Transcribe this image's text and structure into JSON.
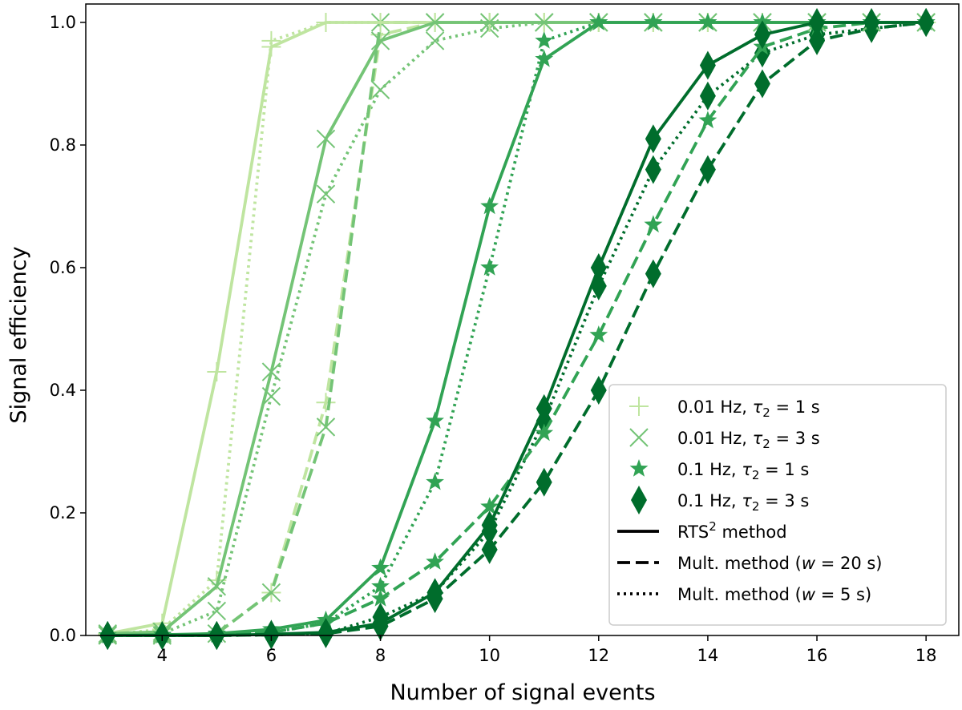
{
  "chart_data": {
    "type": "line",
    "xlabel": "Number of signal events",
    "ylabel": "Signal efficiency",
    "xlim": [
      2.6,
      18.6
    ],
    "ylim": [
      0.0,
      1.03
    ],
    "xticks": [
      4,
      6,
      8,
      10,
      12,
      14,
      16,
      18
    ],
    "xtick_labels": [
      "4",
      "6",
      "8",
      "10",
      "12",
      "14",
      "16",
      "18"
    ],
    "yticks": [
      0.0,
      0.2,
      0.4,
      0.6,
      0.8,
      1.0
    ],
    "ytick_labels": [
      "0.0",
      "0.2",
      "0.4",
      "0.6",
      "0.8",
      "1.0"
    ],
    "grid": false,
    "legend_position": "lower-right",
    "x": [
      3,
      4,
      5,
      6,
      7,
      8,
      9,
      10,
      11,
      12,
      13,
      14,
      15,
      16,
      17,
      18
    ],
    "legend": {
      "markers": [
        {
          "prefix": "0.01 Hz, ",
          "tau": "τ",
          "sub": "2",
          "suffix": " = 1 s",
          "marker": "plus",
          "color": "#bfe5a0"
        },
        {
          "prefix": "0.01 Hz, ",
          "tau": "τ",
          "sub": "2",
          "suffix": " = 3 s",
          "marker": "x",
          "color": "#74c476"
        },
        {
          "prefix": "0.1 Hz, ",
          "tau": "τ",
          "sub": "2",
          "suffix": " = 1 s",
          "marker": "star",
          "color": "#31a354"
        },
        {
          "prefix": "0.1 Hz, ",
          "tau": "τ",
          "sub": "2",
          "suffix": " = 3 s",
          "marker": "diamond",
          "color": "#006d2c"
        }
      ],
      "methods": [
        {
          "label": "RTS",
          "sup": "2",
          "after": " method",
          "style": "solid"
        },
        {
          "label": "Mult. method (",
          "italic": "w",
          "after": " = 20 s)",
          "style": "dashed"
        },
        {
          "label": "Mult. method (",
          "italic": "w",
          "after": " = 5 s)",
          "style": "dotted"
        }
      ]
    },
    "series": [
      {
        "group": "0.01 Hz, τ2 = 1 s",
        "method": "RTS2",
        "color": "#bfe5a0",
        "marker": "plus",
        "style": "solid",
        "values": [
          0.003,
          0.02,
          0.43,
          0.96,
          1.0,
          1.0,
          1.0,
          1.0,
          1.0,
          1.0,
          1.0,
          1.0,
          1.0,
          1.0,
          1.0,
          1.0
        ]
      },
      {
        "group": "0.01 Hz, τ2 = 1 s",
        "method": "Mult. w=20",
        "color": "#bfe5a0",
        "marker": "plus",
        "style": "dashed",
        "values": [
          0.0,
          0.0,
          0.003,
          0.07,
          0.38,
          0.98,
          1.0,
          1.0,
          1.0,
          1.0,
          1.0,
          1.0,
          1.0,
          1.0,
          1.0,
          1.0
        ]
      },
      {
        "group": "0.01 Hz, τ2 = 1 s",
        "method": "Mult. w=5",
        "color": "#bfe5a0",
        "marker": "plus",
        "style": "dotted",
        "values": [
          0.001,
          0.01,
          0.09,
          0.97,
          1.0,
          1.0,
          1.0,
          1.0,
          1.0,
          1.0,
          1.0,
          1.0,
          1.0,
          1.0,
          1.0,
          1.0
        ]
      },
      {
        "group": "0.01 Hz, τ2 = 3 s",
        "method": "RTS2",
        "color": "#74c476",
        "marker": "x",
        "style": "solid",
        "values": [
          0.003,
          0.006,
          0.08,
          0.43,
          0.81,
          0.97,
          1.0,
          1.0,
          1.0,
          1.0,
          1.0,
          1.0,
          1.0,
          1.0,
          1.0,
          1.0
        ]
      },
      {
        "group": "0.01 Hz, τ2 = 3 s",
        "method": "Mult. w=20",
        "color": "#74c476",
        "marker": "x",
        "style": "dashed",
        "values": [
          0.0,
          0.0,
          0.003,
          0.07,
          0.34,
          1.0,
          1.0,
          1.0,
          1.0,
          1.0,
          1.0,
          1.0,
          1.0,
          1.0,
          1.0,
          1.0
        ]
      },
      {
        "group": "0.01 Hz, τ2 = 3 s",
        "method": "Mult. w=5",
        "color": "#74c476",
        "marker": "x",
        "style": "dotted",
        "values": [
          0.001,
          0.003,
          0.04,
          0.39,
          0.72,
          0.89,
          0.97,
          0.99,
          1.0,
          1.0,
          1.0,
          1.0,
          1.0,
          1.0,
          1.0,
          1.0
        ]
      },
      {
        "group": "0.1 Hz, τ2 = 1 s",
        "method": "RTS2",
        "color": "#31a354",
        "marker": "star",
        "style": "solid",
        "values": [
          0.0,
          0.001,
          0.003,
          0.01,
          0.025,
          0.11,
          0.35,
          0.7,
          0.94,
          1.0,
          1.0,
          1.0,
          1.0,
          1.0,
          1.0,
          1.0
        ]
      },
      {
        "group": "0.1 Hz, τ2 = 1 s",
        "method": "Mult. w=20",
        "color": "#31a354",
        "marker": "star",
        "style": "dashed",
        "values": [
          0.0,
          0.0,
          0.001,
          0.005,
          0.02,
          0.06,
          0.12,
          0.21,
          0.33,
          0.49,
          0.67,
          0.84,
          0.96,
          0.99,
          1.0,
          1.0
        ]
      },
      {
        "group": "0.1 Hz, τ2 = 1 s",
        "method": "Mult. w=5",
        "color": "#31a354",
        "marker": "star",
        "style": "dotted",
        "values": [
          0.0,
          0.0,
          0.001,
          0.005,
          0.02,
          0.08,
          0.25,
          0.6,
          0.97,
          1.0,
          1.0,
          1.0,
          1.0,
          1.0,
          1.0,
          1.0
        ]
      },
      {
        "group": "0.1 Hz, τ2 = 3 s",
        "method": "RTS2",
        "color": "#006d2c",
        "marker": "diamond",
        "style": "solid",
        "values": [
          0.0,
          0.0,
          0.0,
          0.002,
          0.005,
          0.02,
          0.07,
          0.18,
          0.37,
          0.6,
          0.81,
          0.93,
          0.98,
          1.0,
          1.0,
          1.0
        ]
      },
      {
        "group": "0.1 Hz, τ2 = 3 s",
        "method": "Mult. w=20",
        "color": "#006d2c",
        "marker": "diamond",
        "style": "dashed",
        "values": [
          0.0,
          0.0,
          0.0,
          0.001,
          0.003,
          0.015,
          0.06,
          0.14,
          0.25,
          0.4,
          0.59,
          0.76,
          0.9,
          0.97,
          0.99,
          1.0
        ]
      },
      {
        "group": "0.1 Hz, τ2 = 3 s",
        "method": "Mult. w=5",
        "color": "#006d2c",
        "marker": "diamond",
        "style": "dotted",
        "values": [
          0.0,
          0.0,
          0.0,
          0.001,
          0.003,
          0.03,
          0.07,
          0.17,
          0.35,
          0.57,
          0.76,
          0.88,
          0.95,
          0.98,
          0.99,
          1.0
        ]
      }
    ]
  }
}
